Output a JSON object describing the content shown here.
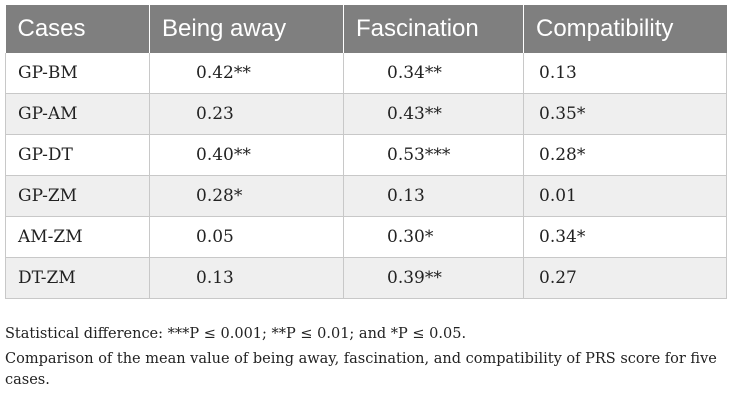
{
  "table": {
    "headers": [
      "Cases",
      "Being away",
      "Fascination",
      "Compatibility"
    ],
    "rows": [
      [
        "GP-BM",
        "0.42**",
        "0.34**",
        "0.13"
      ],
      [
        "GP-AM",
        "0.23",
        "0.43**",
        "0.35*"
      ],
      [
        "GP-DT",
        "0.40**",
        "0.53***",
        "0.28*"
      ],
      [
        "GP-ZM",
        "0.28*",
        "0.13",
        "0.01"
      ],
      [
        "AM-ZM",
        "0.05",
        "0.30*",
        "0.34*"
      ],
      [
        "DT-ZM",
        "0.13",
        "0.39**",
        "0.27"
      ]
    ]
  },
  "notes": {
    "significance": "Statistical difference: ***P ≤ 0.001; **P ≤ 0.01; and *P ≤ 0.05.",
    "caption": "Comparison of the mean value of being away, fascination, and compatibility of PRS score for five cases."
  },
  "colors": {
    "header_bg": "#7f7f7f",
    "header_text": "#ffffff",
    "stripe_bg": "#efefef",
    "border": "#c8c8c8"
  }
}
